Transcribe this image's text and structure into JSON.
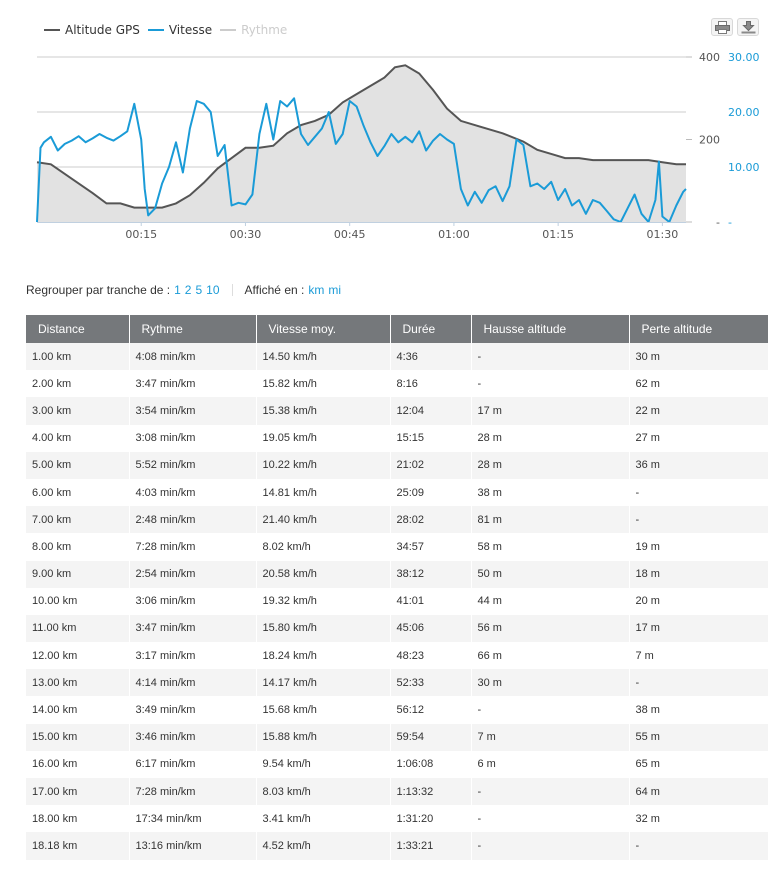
{
  "chart_data": {
    "type": "line",
    "legend": [
      {
        "name": "Altitude GPS",
        "color": "#555555",
        "active": true
      },
      {
        "name": "Vitesse",
        "color": "#1a9bd7",
        "active": true
      },
      {
        "name": "Rythme",
        "color": "#cccccc",
        "active": false
      }
    ],
    "x_ticks": [
      "00:15",
      "00:30",
      "00:45",
      "01:00",
      "01:15",
      "01:30"
    ],
    "y_left_ticks": [
      "400",
      "200",
      "-"
    ],
    "y_right_ticks": [
      "30.00",
      "20.00",
      "10.00",
      "-"
    ],
    "x_range_min": [
      0,
      93.4
    ],
    "altitude_range": [
      0,
      400
    ],
    "speed_range": [
      0,
      30
    ],
    "series": [
      {
        "name": "Altitude GPS",
        "type": "area",
        "x_min": [
          0,
          2,
          5,
          8,
          10,
          12,
          13,
          14,
          16,
          18,
          20,
          22,
          24,
          26,
          28,
          30,
          32,
          34,
          36,
          38,
          40,
          42,
          44,
          46,
          48,
          50,
          51.5,
          53,
          55,
          57,
          59,
          61,
          63,
          65,
          67,
          70,
          72,
          74,
          76,
          78,
          80,
          82,
          85,
          88,
          90,
          92,
          93.4
        ],
        "values": [
          145,
          140,
          105,
          70,
          45,
          45,
          40,
          35,
          35,
          35,
          45,
          65,
          95,
          130,
          155,
          180,
          180,
          185,
          215,
          235,
          245,
          260,
          290,
          310,
          330,
          350,
          375,
          380,
          360,
          320,
          275,
          245,
          235,
          225,
          215,
          195,
          175,
          165,
          155,
          155,
          150,
          150,
          150,
          150,
          145,
          140,
          140
        ]
      },
      {
        "name": "Vitesse",
        "type": "line",
        "x_min": [
          0,
          0.5,
          1,
          2,
          3,
          4,
          5,
          6,
          7,
          8,
          9,
          10,
          11,
          12,
          13,
          14,
          15,
          15.5,
          16,
          17,
          18,
          19,
          20,
          21,
          22,
          23,
          24,
          25,
          26,
          27,
          28,
          29,
          30,
          31,
          32,
          33,
          34,
          35,
          36,
          37,
          38,
          39,
          40,
          41,
          42,
          43,
          44,
          45,
          46,
          47,
          48,
          49,
          50,
          51,
          52,
          53,
          54,
          55,
          56,
          57,
          58,
          59,
          60,
          61,
          62,
          63,
          64,
          65,
          66,
          67,
          68,
          69,
          70,
          71,
          72,
          73,
          74,
          75,
          76,
          77,
          78,
          79,
          80,
          81,
          82,
          83,
          84,
          85,
          86,
          87,
          88,
          89,
          89.5,
          90,
          91,
          92,
          93,
          93.4
        ],
        "values": [
          0,
          13.5,
          14.5,
          15.5,
          13,
          14.2,
          14.8,
          15.6,
          14.5,
          15.2,
          16,
          15.3,
          14.8,
          15.6,
          16.5,
          21.5,
          15,
          6,
          1.2,
          2.5,
          7,
          10,
          14.5,
          9,
          17,
          22,
          21.5,
          20,
          12,
          14,
          3,
          3.5,
          3.2,
          5,
          16,
          21.5,
          15,
          22,
          21,
          22.5,
          16,
          14,
          15.5,
          17,
          20,
          14.2,
          16,
          22,
          21,
          17.5,
          14.5,
          12,
          13.8,
          16,
          14.5,
          15.5,
          14.5,
          16.5,
          13,
          14.8,
          16,
          15,
          14.2,
          6,
          3,
          5.5,
          3.5,
          5.8,
          6.5,
          3.8,
          6.5,
          15,
          14,
          6.5,
          7,
          6,
          7.3,
          4,
          6,
          3,
          4,
          1.5,
          4,
          3.5,
          2,
          0.5,
          0,
          2.5,
          5,
          1.5,
          0,
          4,
          11,
          1,
          0,
          3,
          5.5,
          6
        ]
      }
    ]
  },
  "controls": {
    "group_label": "Regrouper par tranche de :",
    "group_options": [
      "1",
      "2",
      "5",
      "10"
    ],
    "unit_label": "Affiché en :",
    "unit_options": [
      "km",
      "mi"
    ]
  },
  "table": {
    "headers": [
      "Distance",
      "Rythme",
      "Vitesse moy.",
      "Durée",
      "Hausse altitude",
      "Perte altitude"
    ],
    "rows": [
      [
        "1.00 km",
        "4:08 min/km",
        "14.50 km/h",
        "4:36",
        "-",
        "30 m"
      ],
      [
        "2.00 km",
        "3:47 min/km",
        "15.82 km/h",
        "8:16",
        "-",
        "62 m"
      ],
      [
        "3.00 km",
        "3:54 min/km",
        "15.38 km/h",
        "12:04",
        "17 m",
        "22 m"
      ],
      [
        "4.00 km",
        "3:08 min/km",
        "19.05 km/h",
        "15:15",
        "28 m",
        "27 m"
      ],
      [
        "5.00 km",
        "5:52 min/km",
        "10.22 km/h",
        "21:02",
        "28 m",
        "36 m"
      ],
      [
        "6.00 km",
        "4:03 min/km",
        "14.81 km/h",
        "25:09",
        "38 m",
        "-"
      ],
      [
        "7.00 km",
        "2:48 min/km",
        "21.40 km/h",
        "28:02",
        "81 m",
        "-"
      ],
      [
        "8.00 km",
        "7:28 min/km",
        "8.02 km/h",
        "34:57",
        "58 m",
        "19 m"
      ],
      [
        "9.00 km",
        "2:54 min/km",
        "20.58 km/h",
        "38:12",
        "50 m",
        "18 m"
      ],
      [
        "10.00 km",
        "3:06 min/km",
        "19.32 km/h",
        "41:01",
        "44 m",
        "20 m"
      ],
      [
        "11.00 km",
        "3:47 min/km",
        "15.80 km/h",
        "45:06",
        "56 m",
        "17 m"
      ],
      [
        "12.00 km",
        "3:17 min/km",
        "18.24 km/h",
        "48:23",
        "66 m",
        "7 m"
      ],
      [
        "13.00 km",
        "4:14 min/km",
        "14.17 km/h",
        "52:33",
        "30 m",
        "-"
      ],
      [
        "14.00 km",
        "3:49 min/km",
        "15.68 km/h",
        "56:12",
        "-",
        "38 m"
      ],
      [
        "15.00 km",
        "3:46 min/km",
        "15.88 km/h",
        "59:54",
        "7 m",
        "55 m"
      ],
      [
        "16.00 km",
        "6:17 min/km",
        "9.54 km/h",
        "1:06:08",
        "6 m",
        "65 m"
      ],
      [
        "17.00 km",
        "7:28 min/km",
        "8.03 km/h",
        "1:13:32",
        "-",
        "64 m"
      ],
      [
        "18.00 km",
        "17:34 min/km",
        "3.41 km/h",
        "1:31:20",
        "-",
        "32 m"
      ],
      [
        "18.18 km",
        "13:16 min/km",
        "4.52 km/h",
        "1:33:21",
        "-",
        "-"
      ]
    ]
  }
}
